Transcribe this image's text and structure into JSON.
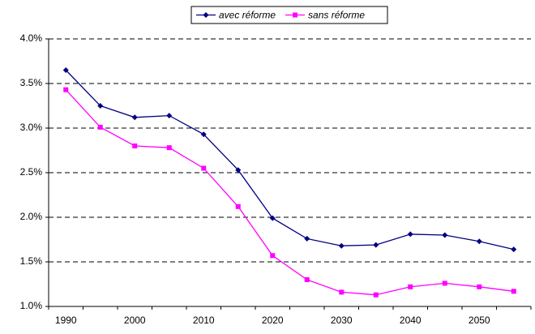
{
  "chart_data": {
    "type": "line",
    "categories": [
      "1990",
      null,
      "2000",
      null,
      "2010",
      null,
      "2020",
      null,
      "2030",
      null,
      "2040",
      null,
      "2050",
      null
    ],
    "series": [
      {
        "name": "avec réforme",
        "color": "#000080",
        "marker": "diamond",
        "values": [
          3.65,
          3.25,
          3.12,
          3.14,
          2.93,
          2.53,
          1.99,
          1.76,
          1.68,
          1.69,
          1.81,
          1.8,
          1.73,
          1.64
        ]
      },
      {
        "name": "sans réforme",
        "color": "#ff00ff",
        "marker": "square",
        "values": [
          3.43,
          3.01,
          2.8,
          2.78,
          2.55,
          2.12,
          1.57,
          1.3,
          1.16,
          1.13,
          1.22,
          1.26,
          1.22,
          1.17
        ]
      }
    ],
    "ylim": [
      1.0,
      4.0
    ],
    "yticks": [
      {
        "value": 1.0,
        "label": "1.0%"
      },
      {
        "value": 1.5,
        "label": "1.5%"
      },
      {
        "value": 2.0,
        "label": "2.0%"
      },
      {
        "value": 2.5,
        "label": "2.5%"
      },
      {
        "value": 3.0,
        "label": "3.0%"
      },
      {
        "value": 3.5,
        "label": "3.5%"
      },
      {
        "value": 4.0,
        "label": "4.0%"
      }
    ],
    "grid": true,
    "legend": "top"
  }
}
